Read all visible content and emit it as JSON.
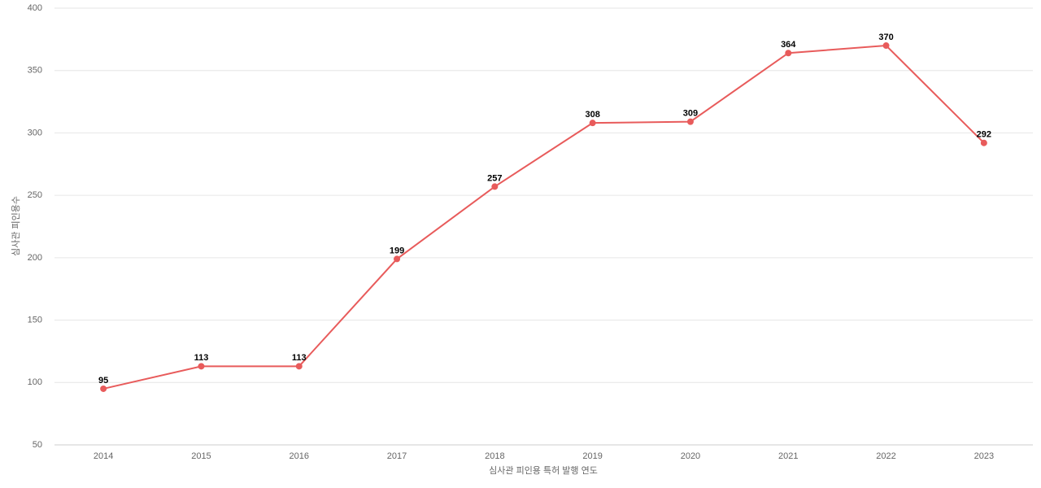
{
  "chart_data": {
    "type": "line",
    "x_label": "심사관 피인용 특허 발행 연도",
    "y_label": "심사관 피인용수",
    "categories": [
      "2014",
      "2015",
      "2016",
      "2017",
      "2018",
      "2019",
      "2020",
      "2021",
      "2022",
      "2023"
    ],
    "values": [
      95,
      113,
      113,
      199,
      257,
      308,
      309,
      364,
      370,
      292
    ],
    "color": "#e85b5b",
    "ylim": [
      50,
      400
    ],
    "yticks": [
      50,
      100,
      150,
      200,
      250,
      300,
      350,
      400
    ],
    "grid": true
  }
}
